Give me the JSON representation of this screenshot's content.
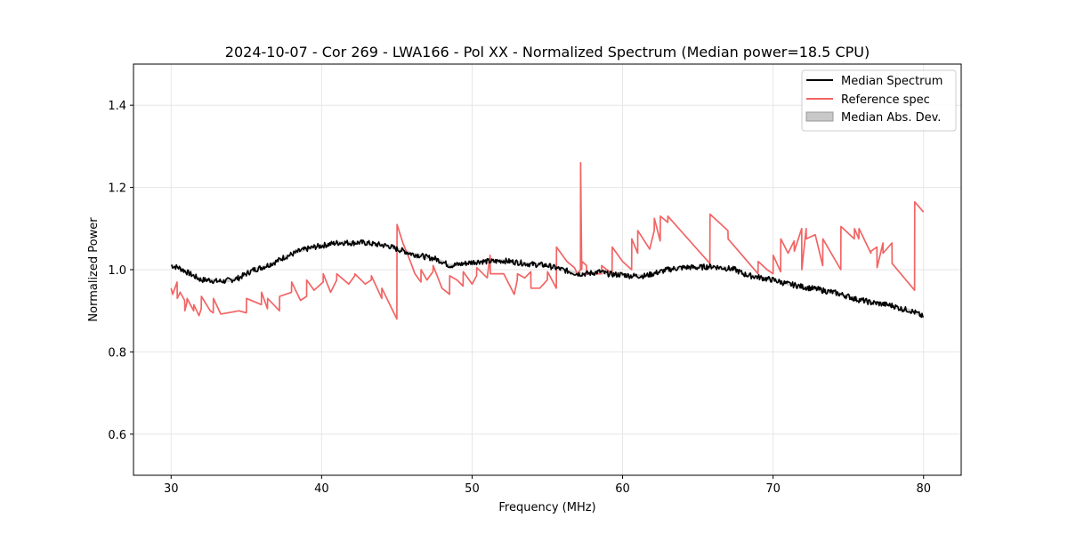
{
  "chart_data": {
    "type": "line",
    "title": "2024-10-07 - Cor 269 - LWA166 - Pol XX - Normalized Spectrum (Median power=18.5 CPU)",
    "xlabel": "Frequency (MHz)",
    "ylabel": "Normalized Power",
    "xlim": [
      27.5,
      82.5
    ],
    "ylim": [
      0.5,
      1.5
    ],
    "xticks": [
      30,
      40,
      50,
      60,
      70,
      80
    ],
    "xtick_labels": [
      "30",
      "40",
      "50",
      "60",
      "70",
      "80"
    ],
    "yticks": [
      0.6,
      0.8,
      1.0,
      1.2,
      1.4
    ],
    "ytick_labels": [
      "0.6",
      "0.8",
      "1.0",
      "1.2",
      "1.4"
    ],
    "grid": true,
    "legend_position": "top-right",
    "legend": [
      "Median Spectrum",
      "Reference spec",
      "Median Abs. Dev."
    ],
    "colors": {
      "median": "#000000",
      "reference": "#f26464",
      "mad": "#b0b0b0"
    },
    "series": [
      {
        "name": "Median Spectrum",
        "x": [
          30,
          30.5,
          31,
          31.5,
          32,
          32.5,
          33,
          33.5,
          34,
          34.5,
          35,
          35.5,
          36,
          36.5,
          37,
          37.5,
          38,
          38.5,
          39,
          39.5,
          40,
          40.5,
          41,
          41.5,
          42,
          42.5,
          43,
          43.5,
          44,
          44.5,
          45,
          45.5,
          46,
          46.5,
          47,
          47.5,
          48,
          48.5,
          49,
          49.5,
          50,
          50.5,
          51,
          51.5,
          52,
          52.5,
          53,
          53.5,
          54,
          54.5,
          55,
          55.5,
          56,
          56.5,
          57,
          57.5,
          58,
          58.5,
          59,
          59.5,
          60,
          60.5,
          61,
          61.5,
          62,
          62.5,
          63,
          63.5,
          64,
          64.5,
          65,
          65.5,
          66,
          66.5,
          67,
          67.5,
          68,
          68.5,
          69,
          69.5,
          70,
          70.5,
          71,
          71.5,
          72,
          72.5,
          73,
          73.5,
          74,
          74.5,
          75,
          75.5,
          76,
          76.5,
          77,
          77.5,
          78,
          78.5,
          79,
          79.5,
          80
        ],
        "values": [
          1.01,
          1.005,
          0.995,
          0.985,
          0.975,
          0.975,
          0.972,
          0.972,
          0.975,
          0.98,
          0.99,
          1.0,
          1.005,
          1.012,
          1.02,
          1.03,
          1.037,
          1.045,
          1.05,
          1.055,
          1.058,
          1.062,
          1.065,
          1.066,
          1.065,
          1.066,
          1.065,
          1.062,
          1.06,
          1.057,
          1.05,
          1.045,
          1.038,
          1.035,
          1.03,
          1.027,
          1.02,
          1.01,
          1.012,
          1.015,
          1.018,
          1.02,
          1.02,
          1.02,
          1.022,
          1.02,
          1.018,
          1.015,
          1.013,
          1.012,
          1.01,
          1.005,
          1.0,
          0.995,
          0.99,
          0.99,
          0.992,
          0.995,
          0.99,
          0.988,
          0.988,
          0.985,
          0.985,
          0.985,
          0.99,
          0.995,
          1.0,
          1.003,
          1.005,
          1.006,
          1.005,
          1.007,
          1.008,
          1.005,
          1.003,
          1.0,
          0.99,
          0.985,
          0.982,
          0.978,
          0.975,
          0.97,
          0.965,
          0.962,
          0.958,
          0.955,
          0.952,
          0.948,
          0.945,
          0.94,
          0.935,
          0.928,
          0.925,
          0.92,
          0.918,
          0.915,
          0.912,
          0.905,
          0.902,
          0.895,
          0.885
        ]
      },
      {
        "name": "Reference spec",
        "x": [
          30,
          30.1,
          30.4,
          30.41,
          30.6,
          30.9,
          30.91,
          31.05,
          31.06,
          31.5,
          31.51,
          31.85,
          32,
          32.01,
          32.6,
          32.8,
          32.81,
          33.3,
          34.5,
          35.0,
          35.01,
          36.0,
          36.01,
          36.4,
          36.41,
          37.2,
          37.21,
          38.0,
          38.01,
          38.6,
          39.0,
          39.01,
          39.5,
          40.1,
          40.11,
          40.6,
          41.0,
          41.01,
          41.8,
          42.2,
          42.21,
          42.9,
          43.3,
          43.31,
          44.0,
          44.0,
          45.0,
          45.01,
          45.4,
          45.9,
          46.2,
          46.5,
          46.6,
          46.61,
          47.0,
          47.4,
          47.41,
          48.0,
          48.5,
          48.51,
          49.0,
          49.4,
          49.41,
          50.0,
          50.3,
          50.31,
          51.0,
          51.2,
          51.21,
          52.1,
          52.8,
          53.0,
          53.01,
          53.5,
          53.9,
          53.91,
          54.5,
          55.0,
          55.01,
          55.6,
          55.61,
          56.3,
          56.8,
          57.0,
          57.2,
          57.21,
          57.28,
          57.3,
          57.6,
          57.61,
          58.6,
          58.61,
          59.3,
          59.31,
          60.0,
          60.6,
          60.61,
          61.0,
          61.01,
          61.8,
          62.1,
          62.11,
          62.5,
          62.51,
          63.0,
          63.01,
          65.8,
          65.81,
          67.0,
          67.01,
          69.0,
          69.01,
          69.6,
          70.0,
          70.01,
          70.5,
          70.51,
          71.0,
          71.4,
          71.41,
          71.9,
          71.91,
          72.2,
          72.21,
          72.8,
          73.3,
          73.31,
          74.5,
          74.51,
          75.4,
          75.41,
          75.7,
          75.71,
          76.5,
          76.51,
          76.9,
          76.91,
          77.3,
          77.31,
          77.9,
          77.91,
          79.4,
          79.41,
          80
        ],
        "values": [
          0.955,
          0.94,
          0.97,
          0.93,
          0.945,
          0.925,
          0.9,
          0.92,
          0.93,
          0.9,
          0.915,
          0.888,
          0.905,
          0.935,
          0.9,
          0.895,
          0.93,
          0.892,
          0.9,
          0.895,
          0.93,
          0.915,
          0.945,
          0.905,
          0.93,
          0.9,
          0.935,
          0.945,
          0.97,
          0.925,
          0.935,
          0.975,
          0.95,
          0.97,
          0.99,
          0.945,
          0.975,
          0.99,
          0.965,
          0.985,
          0.99,
          0.965,
          0.975,
          0.985,
          0.93,
          0.955,
          0.88,
          1.11,
          1.065,
          1.02,
          0.99,
          0.975,
          0.97,
          1.0,
          0.975,
          0.995,
          1.01,
          0.955,
          0.94,
          0.985,
          0.975,
          0.96,
          0.995,
          0.965,
          0.985,
          1.005,
          0.98,
          1.035,
          0.99,
          0.99,
          0.94,
          0.975,
          0.99,
          0.98,
          0.995,
          0.955,
          0.955,
          0.975,
          0.995,
          0.955,
          1.055,
          1.02,
          1.005,
          0.99,
          1.0,
          1.26,
          1.0,
          1.02,
          1.01,
          0.99,
          0.99,
          1.01,
          0.99,
          1.055,
          1.02,
          1.0,
          1.075,
          1.04,
          1.095,
          1.05,
          1.095,
          1.125,
          1.07,
          1.13,
          1.115,
          1.13,
          1.015,
          1.135,
          1.095,
          1.075,
          0.99,
          1.02,
          1.0,
          0.99,
          1.035,
          0.995,
          1.075,
          1.04,
          1.07,
          1.045,
          1.1,
          1.0,
          1.1,
          1.075,
          1.085,
          1.01,
          1.075,
          1.0,
          1.105,
          1.075,
          1.1,
          1.075,
          1.1,
          1.04,
          1.045,
          1.055,
          1.005,
          1.065,
          1.04,
          1.065,
          1.015,
          0.95,
          1.165,
          1.14
        ]
      }
    ]
  }
}
